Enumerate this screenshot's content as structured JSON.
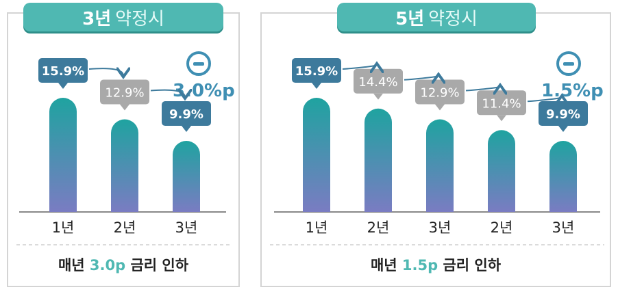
{
  "colors": {
    "accent": "#4fb8b2",
    "bar_top": "#1fa3a0",
    "bar_bottom": "#7a7cc2",
    "callout_dark": "#3d7a9c",
    "callout_gray": "#a9a9a9",
    "minus": "#3f8fb3"
  },
  "chart_data": [
    {
      "type": "bar",
      "tab": {
        "number": "3년",
        "text": "약정시"
      },
      "categories": [
        "1년",
        "2년",
        "3년"
      ],
      "values": [
        15.9,
        12.9,
        9.9
      ],
      "value_labels": [
        "15.9%",
        "12.9%",
        "9.9%"
      ],
      "highlight": [
        true,
        false,
        true
      ],
      "delta_icon": "minus-icon",
      "delta_label": "3.0%p",
      "footer": {
        "prefix": "매년 ",
        "highlight": "3.0p",
        "suffix": " 금리 인하"
      },
      "ylim": [
        0,
        20
      ]
    },
    {
      "type": "bar",
      "tab": {
        "number": "5년",
        "text": "약정시"
      },
      "categories": [
        "1년",
        "2년",
        "3년",
        "2년",
        "3년"
      ],
      "values": [
        15.9,
        14.4,
        12.9,
        11.4,
        9.9
      ],
      "value_labels": [
        "15.9%",
        "14.4%",
        "12.9%",
        "11.4%",
        "9.9%"
      ],
      "highlight": [
        true,
        false,
        false,
        false,
        true
      ],
      "delta_icon": "minus-icon",
      "delta_label": "1.5%p",
      "footer": {
        "prefix": "매년 ",
        "highlight": "1.5p",
        "suffix": " 금리 인하"
      },
      "ylim": [
        0,
        20
      ]
    }
  ]
}
